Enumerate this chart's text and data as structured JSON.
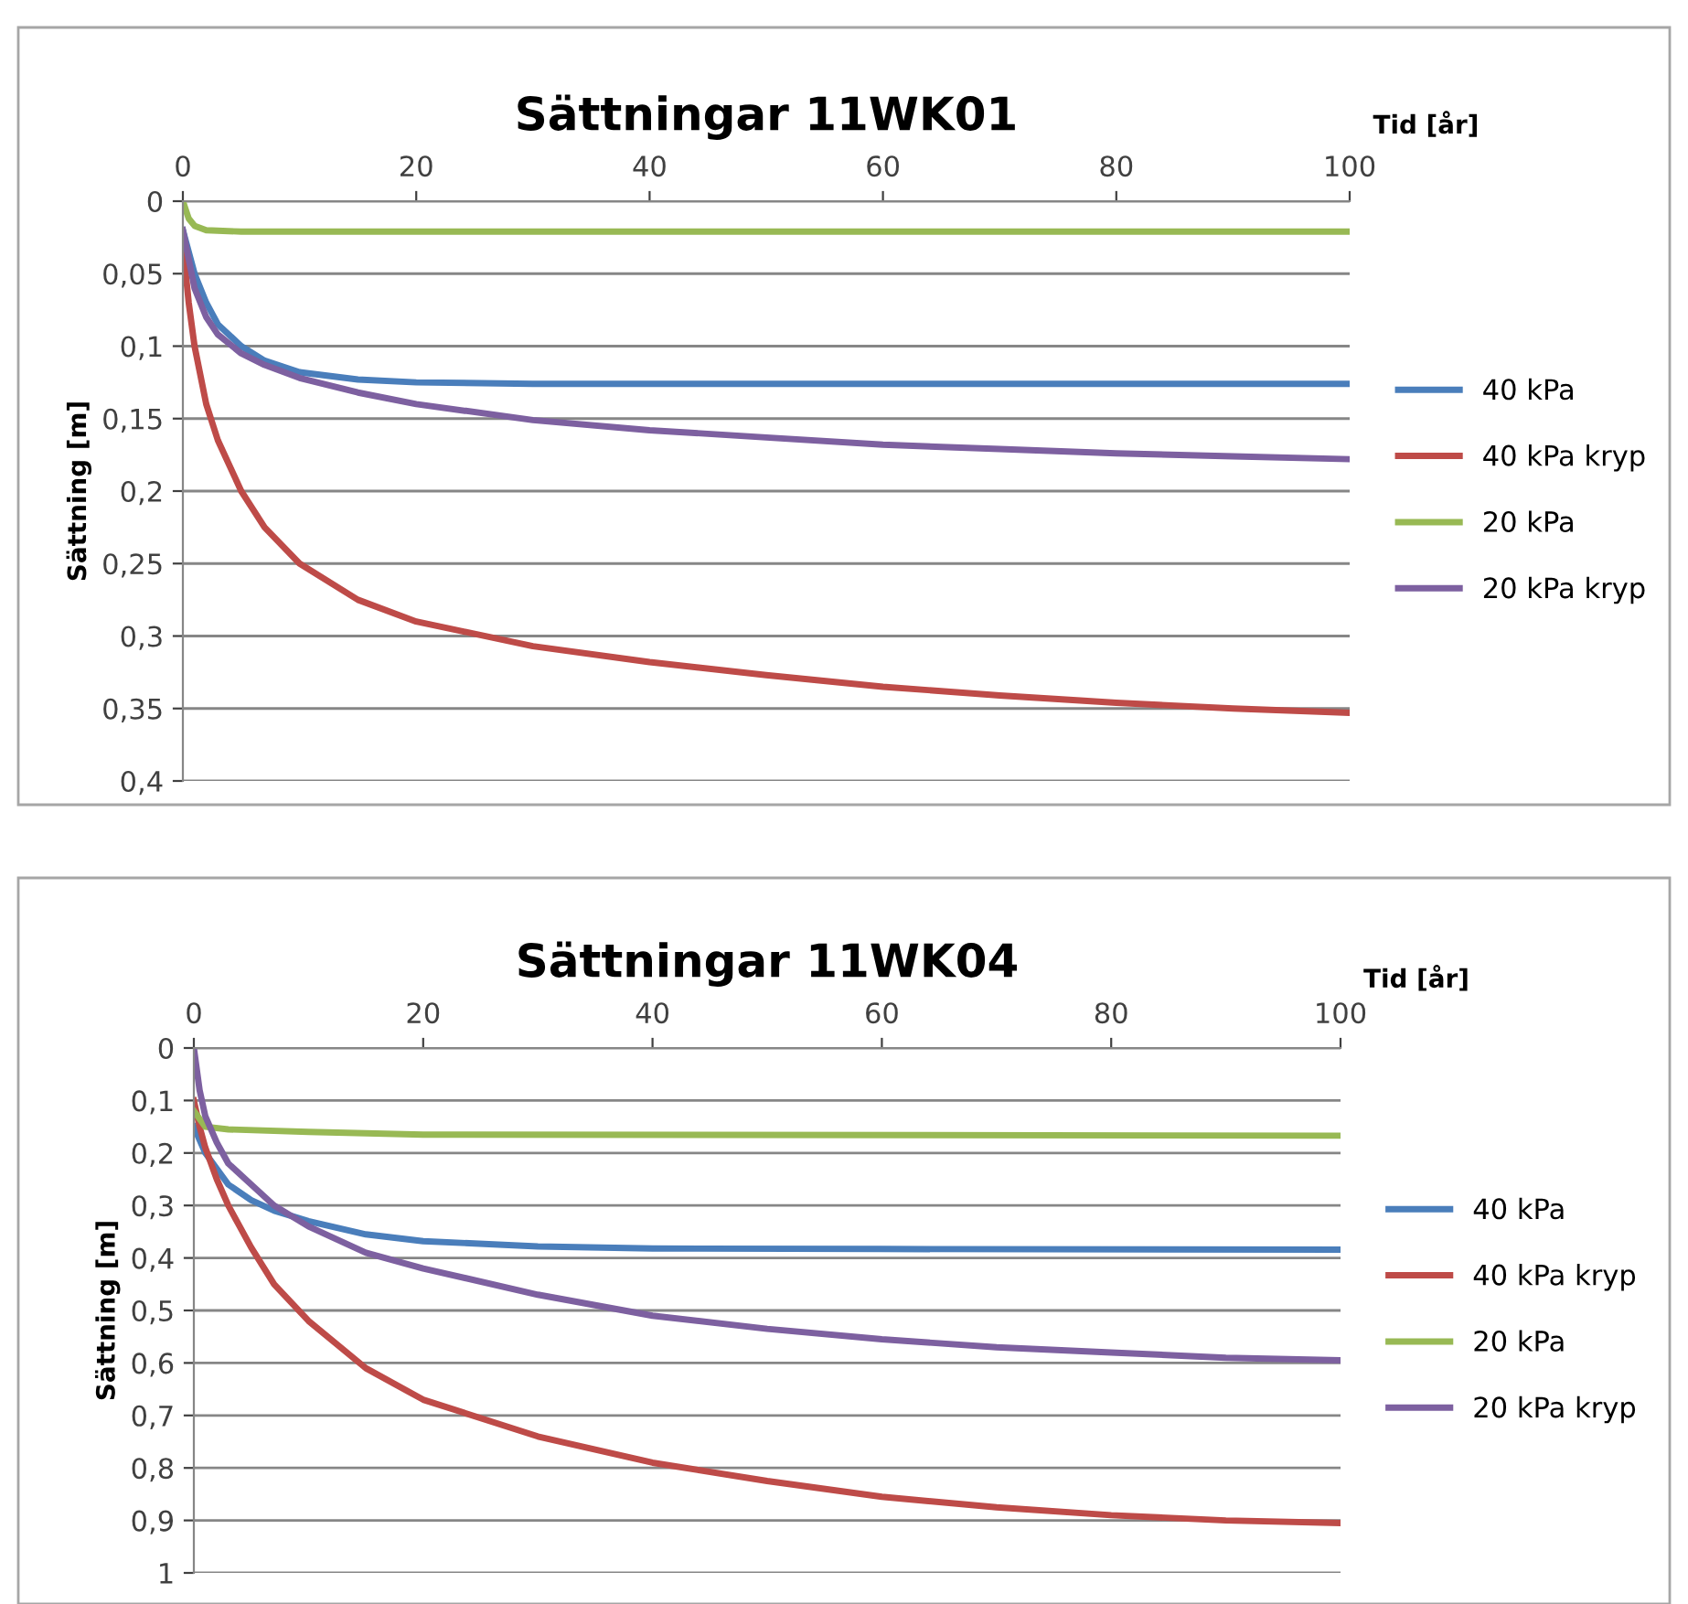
{
  "chart_data": [
    {
      "type": "line",
      "title": "Sättningar 11WK01",
      "xlabel": "Tid [år]",
      "ylabel": "Sättning [m]",
      "legend": "right",
      "grid": "y",
      "marker": "none",
      "line_style": "solid",
      "xlim": [
        0,
        100
      ],
      "xticks": [
        0,
        20,
        40,
        60,
        80,
        100
      ],
      "ylim": [
        0.4,
        0
      ],
      "yticks": [
        0,
        {
          "value": 0.05,
          "label": "0,05"
        },
        {
          "value": 0.1,
          "label": "0,1"
        },
        {
          "value": 0.15,
          "label": "0,15"
        },
        {
          "value": 0.2,
          "label": "0,2"
        },
        {
          "value": 0.25,
          "label": "0,25"
        },
        {
          "value": 0.3,
          "label": "0,3"
        },
        {
          "value": 0.35,
          "label": "0,35"
        },
        {
          "value": 0.4,
          "label": "0,4"
        }
      ],
      "series": [
        {
          "name": "40 kPa",
          "color": "#4a7ebb",
          "x": [
            0,
            1,
            2,
            3,
            5,
            7,
            10,
            15,
            20,
            30,
            50,
            100
          ],
          "values": [
            0.02,
            0.05,
            0.07,
            0.085,
            0.1,
            0.11,
            0.118,
            0.123,
            0.125,
            0.126,
            0.126,
            0.126
          ]
        },
        {
          "name": "40 kPa kryp",
          "color": "#be4b48",
          "x": [
            0,
            0.5,
            1,
            2,
            3,
            5,
            7,
            10,
            15,
            20,
            30,
            40,
            50,
            60,
            70,
            80,
            90,
            100
          ],
          "values": [
            0.03,
            0.07,
            0.1,
            0.14,
            0.165,
            0.2,
            0.225,
            0.25,
            0.275,
            0.29,
            0.307,
            0.318,
            0.327,
            0.335,
            0.341,
            0.346,
            0.35,
            0.353
          ]
        },
        {
          "name": "20 kPa",
          "color": "#98b954",
          "x": [
            0,
            0.5,
            1,
            2,
            5,
            100
          ],
          "values": [
            0.0,
            0.012,
            0.017,
            0.02,
            0.021,
            0.021
          ]
        },
        {
          "name": "20 kPa kryp",
          "color": "#7d60a0",
          "x": [
            0,
            1,
            2,
            3,
            5,
            7,
            10,
            15,
            20,
            30,
            40,
            50,
            60,
            70,
            80,
            90,
            100
          ],
          "values": [
            0.02,
            0.06,
            0.08,
            0.092,
            0.105,
            0.113,
            0.122,
            0.132,
            0.14,
            0.151,
            0.158,
            0.163,
            0.168,
            0.171,
            0.174,
            0.176,
            0.178
          ]
        }
      ]
    },
    {
      "type": "line",
      "title": "Sättningar 11WK04",
      "xlabel": "Tid [år]",
      "ylabel": "Sättning [m]",
      "legend": "right",
      "grid": "y",
      "marker": "none",
      "line_style": "solid",
      "xlim": [
        0,
        100
      ],
      "xticks": [
        0,
        20,
        40,
        60,
        80,
        100
      ],
      "ylim": [
        1,
        0
      ],
      "yticks": [
        0,
        {
          "value": 0.1,
          "label": "0,1"
        },
        {
          "value": 0.2,
          "label": "0,2"
        },
        {
          "value": 0.3,
          "label": "0,3"
        },
        {
          "value": 0.4,
          "label": "0,4"
        },
        {
          "value": 0.5,
          "label": "0,5"
        },
        {
          "value": 0.6,
          "label": "0,6"
        },
        {
          "value": 0.7,
          "label": "0,7"
        },
        {
          "value": 0.8,
          "label": "0,8"
        },
        {
          "value": 0.9,
          "label": "0,9"
        },
        1
      ],
      "series": [
        {
          "name": "40 kPa",
          "color": "#4a7ebb",
          "x": [
            0,
            1,
            3,
            5,
            7,
            10,
            15,
            20,
            30,
            40,
            60,
            100
          ],
          "values": [
            0.15,
            0.2,
            0.26,
            0.29,
            0.31,
            0.33,
            0.355,
            0.368,
            0.378,
            0.382,
            0.383,
            0.384
          ]
        },
        {
          "name": "40 kPa kryp",
          "color": "#be4b48",
          "x": [
            0,
            0.5,
            1,
            2,
            3,
            5,
            7,
            10,
            15,
            20,
            30,
            40,
            50,
            60,
            70,
            80,
            90,
            100
          ],
          "values": [
            0.1,
            0.15,
            0.19,
            0.25,
            0.3,
            0.38,
            0.45,
            0.52,
            0.61,
            0.67,
            0.74,
            0.79,
            0.825,
            0.855,
            0.875,
            0.89,
            0.9,
            0.905
          ]
        },
        {
          "name": "20 kPa",
          "color": "#98b954",
          "x": [
            0,
            1,
            3,
            10,
            20,
            100
          ],
          "values": [
            0.12,
            0.15,
            0.155,
            0.16,
            0.165,
            0.167
          ]
        },
        {
          "name": "20 kPa kryp",
          "color": "#7d60a0",
          "x": [
            0,
            0.5,
            1,
            2,
            3,
            5,
            7,
            10,
            15,
            20,
            30,
            40,
            50,
            60,
            70,
            80,
            90,
            100
          ],
          "values": [
            0.0,
            0.08,
            0.13,
            0.18,
            0.22,
            0.26,
            0.3,
            0.34,
            0.39,
            0.42,
            0.47,
            0.51,
            0.535,
            0.555,
            0.57,
            0.58,
            0.59,
            0.595
          ]
        }
      ]
    }
  ]
}
